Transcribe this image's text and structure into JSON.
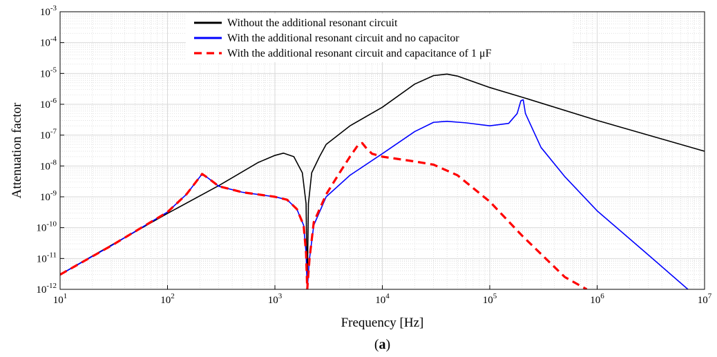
{
  "chart_data": {
    "type": "line",
    "xlabel": "Frequency [Hz]",
    "ylabel": "Attenuation factor",
    "xscale": "log",
    "yscale": "log",
    "xlim": [
      10,
      10000000
    ],
    "ylim": [
      1e-12,
      0.001
    ],
    "grid": true,
    "legend_position": "top-center",
    "caption_open": "(",
    "caption_bold": "a",
    "caption_close": ")",
    "x_ticks": [
      {
        "value": 10,
        "base": "10",
        "exp": "1"
      },
      {
        "value": 100,
        "base": "10",
        "exp": "2"
      },
      {
        "value": 1000,
        "base": "10",
        "exp": "3"
      },
      {
        "value": 10000,
        "base": "10",
        "exp": "4"
      },
      {
        "value": 100000,
        "base": "10",
        "exp": "5"
      },
      {
        "value": 1000000,
        "base": "10",
        "exp": "6"
      },
      {
        "value": 10000000,
        "base": "10",
        "exp": "7"
      }
    ],
    "y_ticks": [
      {
        "value": 1e-12,
        "base": "10",
        "exp": "-12"
      },
      {
        "value": 1e-11,
        "base": "10",
        "exp": "-11"
      },
      {
        "value": 1e-10,
        "base": "10",
        "exp": "-10"
      },
      {
        "value": 1e-09,
        "base": "10",
        "exp": "-9"
      },
      {
        "value": 1e-08,
        "base": "10",
        "exp": "-8"
      },
      {
        "value": 1e-07,
        "base": "10",
        "exp": "-7"
      },
      {
        "value": 1e-06,
        "base": "10",
        "exp": "-6"
      },
      {
        "value": 1e-05,
        "base": "10",
        "exp": "-5"
      },
      {
        "value": 0.0001,
        "base": "10",
        "exp": "-4"
      },
      {
        "value": 0.001,
        "base": "10",
        "exp": "-3"
      }
    ],
    "series": [
      {
        "name": "Without the additional resonant circuit",
        "color": "#000000",
        "dash": "solid",
        "points": [
          [
            10,
            3e-12
          ],
          [
            30,
            2.7e-11
          ],
          [
            100,
            2.9e-10
          ],
          [
            300,
            2.3e-09
          ],
          [
            700,
            1.3e-08
          ],
          [
            1000,
            2.2e-08
          ],
          [
            1200,
            2.6e-08
          ],
          [
            1500,
            2e-08
          ],
          [
            1800,
            6e-09
          ],
          [
            1950,
            6e-10
          ],
          [
            2000,
            1e-12
          ],
          [
            2050,
            6e-10
          ],
          [
            2200,
            6e-09
          ],
          [
            2600,
            2e-08
          ],
          [
            3000,
            5e-08
          ],
          [
            5000,
            2e-07
          ],
          [
            10000,
            8e-07
          ],
          [
            20000,
            4.5e-06
          ],
          [
            30000,
            8.5e-06
          ],
          [
            40000,
            9.5e-06
          ],
          [
            50000,
            8.2e-06
          ],
          [
            100000,
            3.5e-06
          ],
          [
            200000,
            1.7e-06
          ],
          [
            1000000,
            3e-07
          ],
          [
            10000000,
            3e-08
          ]
        ]
      },
      {
        "name": "With the additional resonant circuit and no capacitor",
        "color": "#0000ff",
        "dash": "solid",
        "points": [
          [
            10,
            3e-12
          ],
          [
            30,
            2.6e-11
          ],
          [
            100,
            3.2e-10
          ],
          [
            150,
            1.2e-09
          ],
          [
            190,
            3.5e-09
          ],
          [
            210,
            5.5e-09
          ],
          [
            240,
            4e-09
          ],
          [
            300,
            2.2e-09
          ],
          [
            500,
            1.4e-09
          ],
          [
            1000,
            1e-09
          ],
          [
            1300,
            8e-10
          ],
          [
            1600,
            4e-10
          ],
          [
            1850,
            1.2e-10
          ],
          [
            1950,
            1.5e-11
          ],
          [
            2000,
            1e-12
          ],
          [
            2100,
            1e-11
          ],
          [
            2300,
            1.2e-10
          ],
          [
            3000,
            1e-09
          ],
          [
            5000,
            5e-09
          ],
          [
            10000,
            2.5e-08
          ],
          [
            20000,
            1.3e-07
          ],
          [
            30000,
            2.6e-07
          ],
          [
            40000,
            2.8e-07
          ],
          [
            60000,
            2.5e-07
          ],
          [
            100000,
            2e-07
          ],
          [
            150000,
            2.4e-07
          ],
          [
            180000,
            5e-07
          ],
          [
            195000,
            1.3e-06
          ],
          [
            205000,
            1.4e-06
          ],
          [
            215000,
            5e-07
          ],
          [
            300000,
            4e-08
          ],
          [
            500000,
            4.5e-09
          ],
          [
            1000000,
            3.5e-10
          ],
          [
            3000000,
            1.3e-11
          ],
          [
            7000000,
            1e-12
          ]
        ]
      },
      {
        "name": "With the additional resonant circuit and capacitance of 1 μF",
        "color": "#ff0000",
        "dash": "dashed",
        "points": [
          [
            10,
            3e-12
          ],
          [
            30,
            2.6e-11
          ],
          [
            100,
            3.2e-10
          ],
          [
            150,
            1.2e-09
          ],
          [
            190,
            3.5e-09
          ],
          [
            210,
            5.5e-09
          ],
          [
            240,
            4e-09
          ],
          [
            300,
            2.2e-09
          ],
          [
            500,
            1.4e-09
          ],
          [
            1000,
            1e-09
          ],
          [
            1300,
            8e-10
          ],
          [
            1600,
            4e-10
          ],
          [
            1850,
            1.2e-10
          ],
          [
            1950,
            1.5e-11
          ],
          [
            2000,
            1e-12
          ],
          [
            2100,
            1e-11
          ],
          [
            2300,
            1.5e-10
          ],
          [
            3000,
            1.2e-09
          ],
          [
            4000,
            6e-09
          ],
          [
            5000,
            2e-08
          ],
          [
            6000,
            5e-08
          ],
          [
            6500,
            5.5e-08
          ],
          [
            7000,
            4e-08
          ],
          [
            8000,
            2.5e-08
          ],
          [
            10000,
            2e-08
          ],
          [
            20000,
            1.4e-08
          ],
          [
            30000,
            1.1e-08
          ],
          [
            50000,
            5e-09
          ],
          [
            100000,
            7e-10
          ],
          [
            200000,
            5.5e-11
          ],
          [
            500000,
            2.5e-12
          ],
          [
            800000,
            1e-12
          ]
        ]
      }
    ]
  }
}
